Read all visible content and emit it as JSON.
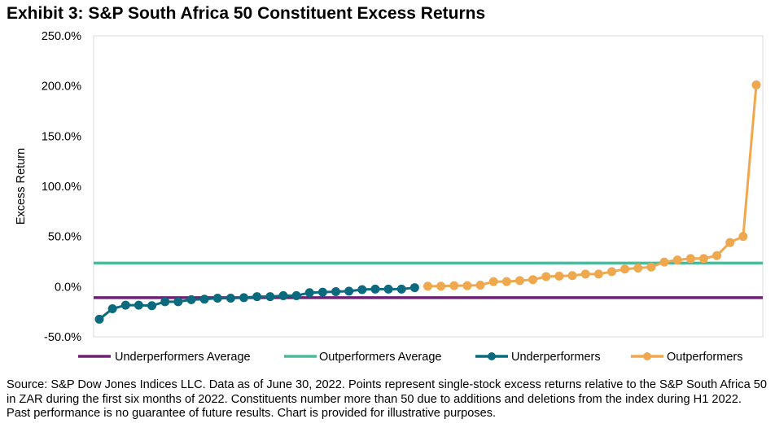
{
  "title": "Exhibit 3: S&P South Africa 50 Constituent Excess Returns",
  "footnote": "Source: S&P Dow Jones Indices LLC. Data as of June 30, 2022. Points represent single-stock excess returns relative to the S&P South Africa 50 in ZAR during the first six months of 2022. Constituents number more than 50 due to additions and deletions from the index during H1 2022. Past performance is no guarantee of future results. Chart is provided for illustrative purposes.",
  "chart_data": {
    "type": "line",
    "title": "Exhibit 3: S&P South Africa 50 Constituent Excess Returns",
    "xlabel": "",
    "ylabel": "Excess Return",
    "ylim": [
      -50,
      250
    ],
    "yticks": [
      -50,
      0,
      50,
      100,
      150,
      200,
      250
    ],
    "ytick_labels": [
      "-50.0%",
      "0.0%",
      "50.0%",
      "100.0%",
      "150.0%",
      "200.0%",
      "250.0%"
    ],
    "grid": false,
    "legend_position": "bottom",
    "x_count": 51,
    "series": [
      {
        "name": "Underperformers Average",
        "kind": "hline",
        "value": -11,
        "color": "#6E2174"
      },
      {
        "name": "Outperformers Average",
        "kind": "hline",
        "value": 23.5,
        "color": "#4DB89A"
      },
      {
        "name": "Underperformers",
        "kind": "line-marker",
        "color": "#0B6A7E",
        "start_index": 0,
        "values": [
          -32.5,
          -22,
          -18.5,
          -18.5,
          -19,
          -15,
          -15,
          -13,
          -12.5,
          -11.5,
          -11.5,
          -11,
          -10,
          -10,
          -9,
          -9,
          -6,
          -5.5,
          -5,
          -4.5,
          -3,
          -2.5,
          -2.5,
          -2.5,
          -1
        ]
      },
      {
        "name": "Outperformers",
        "kind": "line-marker",
        "color": "#F0A84E",
        "start_index": 25,
        "values": [
          0.5,
          0.5,
          1,
          1,
          1.5,
          5,
          5,
          6,
          7,
          10,
          10.5,
          11,
          12.5,
          12.5,
          15,
          17.5,
          18.5,
          19.5,
          24.5,
          26.5,
          28,
          28,
          31,
          44,
          50,
          201
        ]
      }
    ]
  }
}
